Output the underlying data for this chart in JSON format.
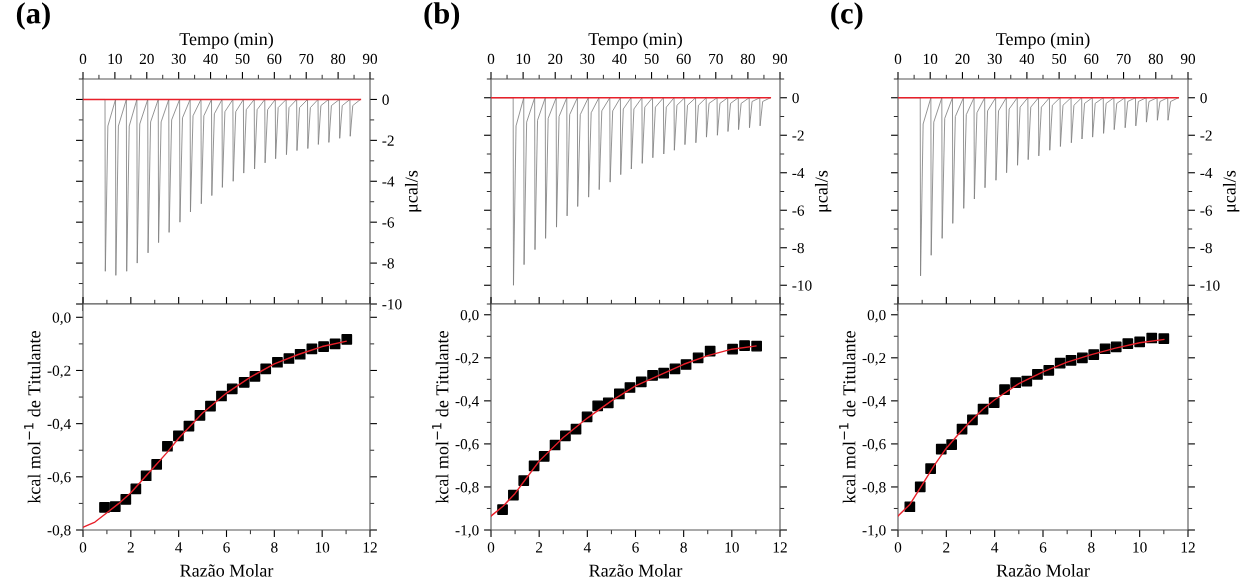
{
  "chart_data": [
    {
      "type": "line",
      "title": "(a)",
      "xlabel": "Tempo (min)",
      "ylabel": "μcal/s",
      "xlim": [
        0,
        90
      ],
      "xticks": [
        0,
        10,
        20,
        30,
        40,
        50,
        60,
        70,
        80,
        90
      ],
      "ylim": [
        -10,
        1
      ],
      "yticks": [
        -10,
        -8,
        -6,
        -4,
        -2,
        0
      ],
      "series": [
        {
          "color": "#808080",
          "x": [
            0,
            6.9,
            7.0,
            7.8,
            10.2,
            10.3,
            11.1,
            13.6,
            13.7,
            14.5,
            16.9,
            17.0,
            17.8,
            20.3,
            20.4,
            21.2,
            23.6,
            23.7,
            24.5,
            26.9,
            27.0,
            27.8,
            30.3,
            30.4,
            31.2,
            33.6,
            33.7,
            34.5,
            37.0,
            37.1,
            37.9,
            40.3,
            40.4,
            41.2,
            43.6,
            43.7,
            44.5,
            47.0,
            47.1,
            47.9,
            50.3,
            50.4,
            51.2,
            53.7,
            53.8,
            54.6,
            57.0,
            57.1,
            57.9,
            60.3,
            60.4,
            61.2,
            63.7,
            63.8,
            64.6,
            67.0,
            67.1,
            67.9,
            70.4,
            70.5,
            71.3,
            73.7,
            73.8,
            74.6,
            77.0,
            77.1,
            77.9,
            80.4,
            80.5,
            81.3,
            83.7,
            83.8,
            84.6,
            87
          ],
          "values": [
            0,
            0,
            -8.4,
            -1.3,
            0,
            -8.6,
            -1.3,
            0,
            -8.4,
            -1.3,
            0,
            -8.0,
            -1.2,
            0,
            -7.5,
            -1.1,
            0,
            -7.0,
            -1.1,
            0,
            -6.5,
            -1.0,
            0,
            -6.0,
            -0.9,
            0,
            -5.5,
            -0.8,
            0,
            -5.1,
            -0.8,
            0,
            -4.7,
            -0.7,
            0,
            -4.3,
            -0.6,
            0,
            -4.0,
            -0.6,
            0,
            -3.6,
            -0.5,
            0,
            -3.4,
            -0.5,
            0,
            -3.1,
            -0.5,
            0,
            -2.9,
            -0.4,
            0,
            -2.7,
            -0.4,
            0,
            -2.5,
            -0.4,
            0,
            -2.4,
            -0.4,
            0,
            -2.2,
            -0.3,
            0,
            -2.1,
            -0.3,
            0,
            -1.9,
            -0.3,
            0,
            -1.8,
            -0.3,
            0
          ]
        },
        {
          "color": "#e8202a",
          "x": [
            0,
            87
          ],
          "values": [
            0,
            0
          ]
        }
      ]
    },
    {
      "type": "scatter",
      "xlabel": "Razão Molar",
      "ylabel": "kcal mol$^{−1}$ de Titulante",
      "xlim": [
        0,
        12
      ],
      "xticks": [
        0,
        2,
        4,
        6,
        8,
        10,
        12
      ],
      "ylim": [
        -0.8,
        0.05
      ],
      "yticks": [
        {
          "value": -0.8,
          "label": "-0,8"
        },
        {
          "value": -0.6,
          "label": "-0,6"
        },
        {
          "value": -0.4,
          "label": "-0,4"
        },
        {
          "value": -0.2,
          "label": "-0,2"
        },
        {
          "value": 0,
          "label": "0,0"
        }
      ],
      "series": [
        {
          "type": "line",
          "color": "#e8202a",
          "x": [
            0,
            0.5,
            1,
            1.5,
            2,
            2.5,
            3,
            3.5,
            4,
            5,
            6,
            7,
            8,
            9,
            10,
            11
          ],
          "values": [
            -0.79,
            -0.77,
            -0.735,
            -0.7,
            -0.66,
            -0.61,
            -0.56,
            -0.51,
            -0.455,
            -0.36,
            -0.285,
            -0.225,
            -0.175,
            -0.14,
            -0.11,
            -0.09
          ]
        },
        {
          "marker": "square",
          "color": "#000000",
          "x": [
            0.9,
            1.35,
            1.79,
            2.21,
            2.64,
            3.08,
            3.53,
            3.99,
            4.43,
            4.89,
            5.33,
            5.79,
            6.24,
            6.74,
            7.19,
            7.64,
            8.13,
            8.61,
            9.08,
            9.57,
            10.06,
            10.54,
            11.03
          ],
          "values": [
            -0.715,
            -0.712,
            -0.685,
            -0.645,
            -0.596,
            -0.553,
            -0.485,
            -0.446,
            -0.409,
            -0.369,
            -0.334,
            -0.296,
            -0.269,
            -0.245,
            -0.222,
            -0.194,
            -0.169,
            -0.155,
            -0.139,
            -0.119,
            -0.11,
            -0.1,
            -0.083
          ]
        }
      ]
    },
    {
      "type": "line",
      "title": "(b)",
      "xlabel": "Tempo (min)",
      "ylabel": "μcal/s",
      "xlim": [
        0,
        90
      ],
      "xticks": [
        0,
        10,
        20,
        30,
        40,
        50,
        60,
        70,
        80,
        90
      ],
      "ylim": [
        -11,
        1
      ],
      "yticks": [
        -10,
        -8,
        -6,
        -4,
        -2,
        0
      ],
      "series": [
        {
          "color": "#808080",
          "x": [
            0,
            6.9,
            7.0,
            7.8,
            10.2,
            10.3,
            11.1,
            13.6,
            13.7,
            14.5,
            16.9,
            17.0,
            17.8,
            20.3,
            20.4,
            21.2,
            23.6,
            23.7,
            24.5,
            26.9,
            27.0,
            27.8,
            30.3,
            30.4,
            31.2,
            33.6,
            33.7,
            34.5,
            37.0,
            37.1,
            37.9,
            40.3,
            40.4,
            41.2,
            43.6,
            43.7,
            44.5,
            47.0,
            47.1,
            47.9,
            50.3,
            50.4,
            51.2,
            53.7,
            53.8,
            54.6,
            57.0,
            57.1,
            57.9,
            60.3,
            60.4,
            61.2,
            63.7,
            63.8,
            64.6,
            67.0,
            67.1,
            67.9,
            70.4,
            70.5,
            71.3,
            73.7,
            73.8,
            74.6,
            77.0,
            77.1,
            77.9,
            80.4,
            80.5,
            81.3,
            83.7,
            83.8,
            84.6,
            87
          ],
          "values": [
            0,
            0,
            -10.0,
            -1.5,
            0,
            -8.9,
            -1.3,
            0,
            -8.1,
            -1.2,
            0,
            -7.5,
            -1.1,
            0,
            -6.9,
            -1.0,
            0,
            -6.3,
            -0.9,
            0,
            -5.8,
            -0.9,
            0,
            -5.3,
            -0.8,
            0,
            -4.9,
            -0.7,
            0,
            -4.5,
            -0.7,
            0,
            -4.1,
            -0.6,
            0,
            -3.8,
            -0.6,
            0,
            -3.5,
            -0.5,
            0,
            -3.2,
            -0.5,
            0,
            -3.0,
            -0.5,
            0,
            -2.8,
            -0.4,
            0,
            -2.5,
            -0.4,
            0,
            -2.4,
            -0.4,
            0,
            -2.1,
            -0.3,
            0,
            -2.0,
            -0.3,
            0,
            -1.8,
            -0.3,
            0,
            -1.7,
            -0.3,
            0,
            -1.6,
            -0.2,
            0,
            -1.5,
            -0.2,
            0
          ]
        },
        {
          "color": "#e8202a",
          "x": [
            0,
            87
          ],
          "values": [
            0,
            0
          ]
        }
      ]
    },
    {
      "type": "scatter",
      "xlabel": "Razão Molar",
      "ylabel": "kcal mol$^{−1}$ de Titulante",
      "xlim": [
        0,
        12
      ],
      "xticks": [
        0,
        2,
        4,
        6,
        8,
        10,
        12
      ],
      "ylim": [
        -1.0,
        0.05
      ],
      "yticks": [
        {
          "value": -1.0,
          "label": "-1,0"
        },
        {
          "value": -0.8,
          "label": "-0,8"
        },
        {
          "value": -0.6,
          "label": "-0,6"
        },
        {
          "value": -0.4,
          "label": "-0,4"
        },
        {
          "value": -0.2,
          "label": "-0,2"
        },
        {
          "value": 0,
          "label": "0,0"
        }
      ],
      "series": [
        {
          "type": "line",
          "color": "#e8202a",
          "x": [
            0,
            0.5,
            1,
            1.5,
            2,
            3,
            4,
            5,
            6,
            7,
            8,
            9,
            10,
            11
          ],
          "values": [
            -0.935,
            -0.89,
            -0.83,
            -0.755,
            -0.68,
            -0.57,
            -0.48,
            -0.4,
            -0.33,
            -0.28,
            -0.23,
            -0.19,
            -0.16,
            -0.145
          ]
        },
        {
          "marker": "square",
          "color": "#000000",
          "x": [
            0.48,
            0.93,
            1.36,
            1.79,
            2.21,
            2.66,
            3.09,
            3.53,
            3.99,
            4.43,
            4.87,
            5.33,
            5.77,
            6.24,
            6.71,
            7.17,
            7.64,
            8.1,
            8.6,
            9.1,
            10.03,
            10.53,
            11.03
          ],
          "values": [
            -0.905,
            -0.838,
            -0.771,
            -0.702,
            -0.658,
            -0.605,
            -0.563,
            -0.531,
            -0.474,
            -0.423,
            -0.409,
            -0.368,
            -0.338,
            -0.312,
            -0.282,
            -0.271,
            -0.251,
            -0.231,
            -0.2,
            -0.169,
            -0.16,
            -0.143,
            -0.146
          ]
        }
      ]
    },
    {
      "type": "line",
      "title": "(c)",
      "xlabel": "Tempo (min)",
      "ylabel": "μcal/s",
      "xlim": [
        0,
        90
      ],
      "xticks": [
        0,
        10,
        20,
        30,
        40,
        50,
        60,
        70,
        80,
        90
      ],
      "ylim": [
        -11,
        1
      ],
      "yticks": [
        -10,
        -8,
        -6,
        -4,
        -2,
        0
      ],
      "series": [
        {
          "color": "#808080",
          "x": [
            0,
            6.9,
            7.0,
            7.8,
            10.2,
            10.3,
            11.1,
            13.6,
            13.7,
            14.5,
            16.9,
            17.0,
            17.8,
            20.3,
            20.4,
            21.2,
            23.6,
            23.7,
            24.5,
            26.9,
            27.0,
            27.8,
            30.3,
            30.4,
            31.2,
            33.6,
            33.7,
            34.5,
            37.0,
            37.1,
            37.9,
            40.3,
            40.4,
            41.2,
            43.6,
            43.7,
            44.5,
            47.0,
            47.1,
            47.9,
            50.3,
            50.4,
            51.2,
            53.7,
            53.8,
            54.6,
            57.0,
            57.1,
            57.9,
            60.3,
            60.4,
            61.2,
            63.7,
            63.8,
            64.6,
            67.0,
            67.1,
            67.9,
            70.4,
            70.5,
            71.3,
            73.7,
            73.8,
            74.6,
            77.0,
            77.1,
            77.9,
            80.4,
            80.5,
            81.3,
            83.7,
            83.8,
            84.6,
            87
          ],
          "values": [
            0,
            0,
            -9.5,
            -1.4,
            0,
            -8.4,
            -1.3,
            0,
            -7.5,
            -1.1,
            0,
            -6.7,
            -1.0,
            0,
            -5.9,
            -0.9,
            0,
            -5.4,
            -0.8,
            0,
            -4.8,
            -0.7,
            0,
            -4.4,
            -0.7,
            0,
            -4.0,
            -0.6,
            0,
            -3.6,
            -0.5,
            0,
            -3.3,
            -0.5,
            0,
            -3.1,
            -0.5,
            0,
            -2.8,
            -0.4,
            0,
            -2.6,
            -0.4,
            0,
            -2.4,
            -0.4,
            0,
            -2.2,
            -0.3,
            0,
            -2.1,
            -0.3,
            0,
            -1.9,
            -0.3,
            0,
            -1.7,
            -0.3,
            0,
            -1.6,
            -0.2,
            0,
            -1.5,
            -0.2,
            0,
            -1.3,
            -0.2,
            0,
            -1.2,
            -0.2,
            0,
            -1.2,
            -0.2,
            0
          ]
        },
        {
          "color": "#e8202a",
          "x": [
            0,
            87
          ],
          "values": [
            0,
            0
          ]
        }
      ]
    },
    {
      "type": "scatter",
      "xlabel": "Razão Molar",
      "ylabel": "kcal mol$^{−1}$ de Titulante",
      "xlim": [
        0,
        12
      ],
      "xticks": [
        0,
        2,
        4,
        6,
        8,
        10,
        12
      ],
      "ylim": [
        -1.0,
        0.05
      ],
      "yticks": [
        {
          "value": -1.0,
          "label": "-1,0"
        },
        {
          "value": -0.8,
          "label": "-0,8"
        },
        {
          "value": -0.6,
          "label": "-0,6"
        },
        {
          "value": -0.4,
          "label": "-0,4"
        },
        {
          "value": -0.2,
          "label": "-0,2"
        },
        {
          "value": 0,
          "label": "0,0"
        }
      ],
      "series": [
        {
          "type": "line",
          "color": "#e8202a",
          "x": [
            0,
            0.5,
            1,
            1.5,
            2,
            2.5,
            3,
            3.5,
            4,
            5,
            6,
            7,
            8,
            9,
            10,
            11
          ],
          "values": [
            -0.935,
            -0.88,
            -0.79,
            -0.7,
            -0.62,
            -0.555,
            -0.495,
            -0.44,
            -0.395,
            -0.32,
            -0.265,
            -0.22,
            -0.185,
            -0.155,
            -0.13,
            -0.115
          ]
        },
        {
          "marker": "square",
          "color": "#000000",
          "x": [
            0.49,
            0.92,
            1.35,
            1.79,
            2.22,
            2.65,
            3.08,
            3.52,
            3.98,
            4.41,
            4.87,
            5.33,
            5.77,
            6.24,
            6.71,
            7.16,
            7.63,
            8.1,
            8.57,
            9.03,
            9.51,
            10.0,
            10.5,
            11.0
          ],
          "values": [
            -0.892,
            -0.8,
            -0.715,
            -0.624,
            -0.603,
            -0.531,
            -0.488,
            -0.438,
            -0.408,
            -0.348,
            -0.315,
            -0.308,
            -0.277,
            -0.258,
            -0.225,
            -0.212,
            -0.2,
            -0.185,
            -0.158,
            -0.149,
            -0.134,
            -0.126,
            -0.108,
            -0.111
          ]
        }
      ]
    }
  ]
}
